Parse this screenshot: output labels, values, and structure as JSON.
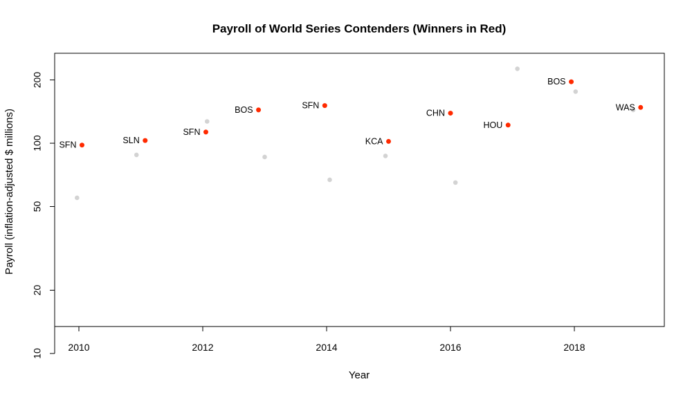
{
  "chart_data": {
    "type": "scatter",
    "title": "Payroll of World Series Contenders (Winners in Red)",
    "xlabel": "Year",
    "ylabel": "Payroll (inflation-adjusted $ millions)",
    "x_ticks": [
      2010,
      2012,
      2014,
      2016,
      2018
    ],
    "y_ticks": [
      10,
      20,
      50,
      100,
      200
    ],
    "y_scale": "log",
    "colors": {
      "winner": "#ff2a00",
      "loser": "#d3d3d3"
    },
    "winners": [
      {
        "year": 2010.05,
        "payroll": 98,
        "team": "SFN"
      },
      {
        "year": 2011.07,
        "payroll": 103,
        "team": "SLN"
      },
      {
        "year": 2012.05,
        "payroll": 113,
        "team": "SFN"
      },
      {
        "year": 2012.9,
        "payroll": 144,
        "team": "BOS"
      },
      {
        "year": 2013.97,
        "payroll": 151,
        "team": "SFN"
      },
      {
        "year": 2015.0,
        "payroll": 102,
        "team": "KCA"
      },
      {
        "year": 2016.0,
        "payroll": 139,
        "team": "CHN"
      },
      {
        "year": 2016.93,
        "payroll": 122,
        "team": "HOU"
      },
      {
        "year": 2017.95,
        "payroll": 196,
        "team": "BOS"
      },
      {
        "year": 2019.07,
        "payroll": 148,
        "team": "WAS"
      }
    ],
    "losers": [
      {
        "year": 2009.97,
        "payroll": 55
      },
      {
        "year": 2010.93,
        "payroll": 88
      },
      {
        "year": 2012.07,
        "payroll": 127
      },
      {
        "year": 2013.0,
        "payroll": 86
      },
      {
        "year": 2014.05,
        "payroll": 67
      },
      {
        "year": 2014.95,
        "payroll": 87
      },
      {
        "year": 2016.08,
        "payroll": 65
      },
      {
        "year": 2017.08,
        "payroll": 226
      },
      {
        "year": 2018.02,
        "payroll": 176
      },
      {
        "year": 2018.95,
        "payroll": 144
      }
    ]
  }
}
